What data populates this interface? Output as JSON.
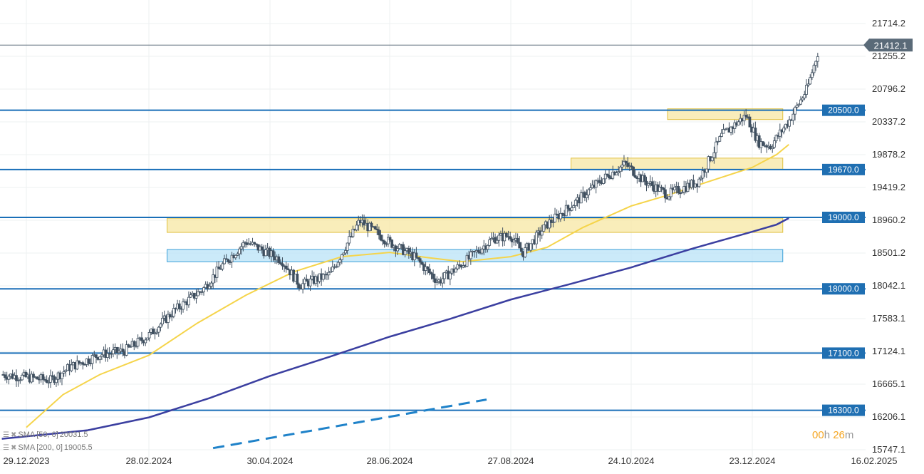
{
  "chart_data": {
    "type": "candlestick",
    "y_ticks": [
      "21714.2",
      "21255.2",
      "20796.2",
      "20337.2",
      "19878.2",
      "19419.2",
      "18960.2",
      "18501.2",
      "18042.1",
      "17583.1",
      "17124.1",
      "16665.1",
      "16206.1",
      "15747.1"
    ],
    "ylim": [
      15747.1,
      21714.2
    ],
    "x_ticks": [
      "29.12.2023",
      "28.02.2024",
      "30.04.2024",
      "28.06.2024",
      "27.08.2024",
      "24.10.2024",
      "23.12.2024",
      "16.02.2025"
    ],
    "current_price": "21412.1",
    "levels": [
      {
        "value": 20500.0,
        "label": "20500.0"
      },
      {
        "value": 19670.0,
        "label": "19670.0"
      },
      {
        "value": 19000.0,
        "label": "19000.0"
      },
      {
        "value": 18000.0,
        "label": "18000.0"
      },
      {
        "value": 17100.0,
        "label": "17100.0"
      },
      {
        "value": 16300.0,
        "label": "16300.0"
      }
    ],
    "zones": [
      {
        "kind": "resistance",
        "from": 20370,
        "to": 20520,
        "color": "#f7e7a3"
      },
      {
        "kind": "resistance",
        "from": 19670,
        "to": 19830,
        "color": "#f7e7a3"
      },
      {
        "kind": "resistance",
        "from": 18790,
        "to": 18990,
        "color": "#f7e7a3"
      },
      {
        "kind": "support",
        "from": 18380,
        "to": 18550,
        "color": "#b9e3f7"
      }
    ],
    "indicators": [
      {
        "name": "SMA",
        "params": "[50, 0]",
        "value": "20031.5",
        "color": "#f5d44a"
      },
      {
        "name": "SMA",
        "params": "[200, 0]",
        "value": "19005.5",
        "color": "#3b3fa0"
      }
    ],
    "colors": {
      "level_line": "#1a6fb8",
      "label_bg": "#1f6fb2",
      "candle": "#3f4f5f",
      "price_tag": "#5a6a78",
      "trend_dash": "#1f82c9"
    }
  },
  "timer": {
    "hours": "00",
    "hours_unit": "h",
    "minutes": "26",
    "minutes_unit": "m"
  }
}
